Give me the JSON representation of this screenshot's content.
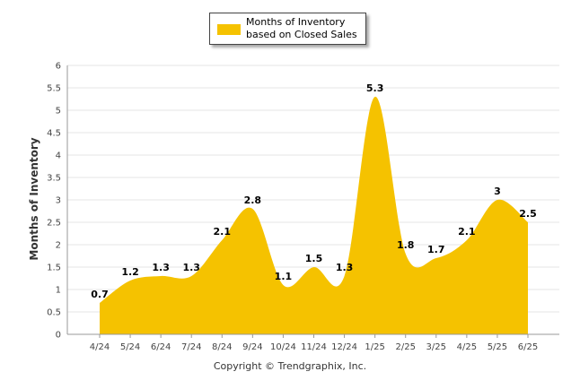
{
  "chart_data": {
    "type": "area",
    "categories": [
      "4/24",
      "5/24",
      "6/24",
      "7/24",
      "8/24",
      "9/24",
      "10/24",
      "11/24",
      "12/24",
      "1/25",
      "2/25",
      "3/25",
      "4/25",
      "5/25",
      "6/25"
    ],
    "series": [
      {
        "name": "Months of Inventory based on Closed Sales",
        "values": [
          0.7,
          1.2,
          1.3,
          1.3,
          2.1,
          2.8,
          1.1,
          1.5,
          1.3,
          5.3,
          1.8,
          1.7,
          2.1,
          3,
          2.5
        ]
      }
    ],
    "data_labels": [
      "0.7",
      "1.2",
      "1.3",
      "1.3",
      "2.1",
      "2.8",
      "1.1",
      "1.5",
      "1.3",
      "5.3",
      "1.8",
      "1.7",
      "2.1",
      "3",
      "2.5"
    ],
    "ylabel": "Months of Inventory",
    "xlabel": "",
    "ylim": [
      0,
      6
    ],
    "yticks": [
      "0",
      "0.5",
      "1",
      "1.5",
      "2",
      "2.5",
      "3",
      "3.5",
      "4",
      "4.5",
      "5",
      "5.5",
      "6"
    ],
    "grid": true,
    "legend_position": "top-center",
    "colors": {
      "area": "#F5C200",
      "grid": "#e6e6e6",
      "axis": "#999999"
    }
  },
  "legend": {
    "label": "Months of Inventory based on Closed Sales"
  },
  "footer": {
    "copyright": "Copyright © Trendgraphix, Inc."
  }
}
